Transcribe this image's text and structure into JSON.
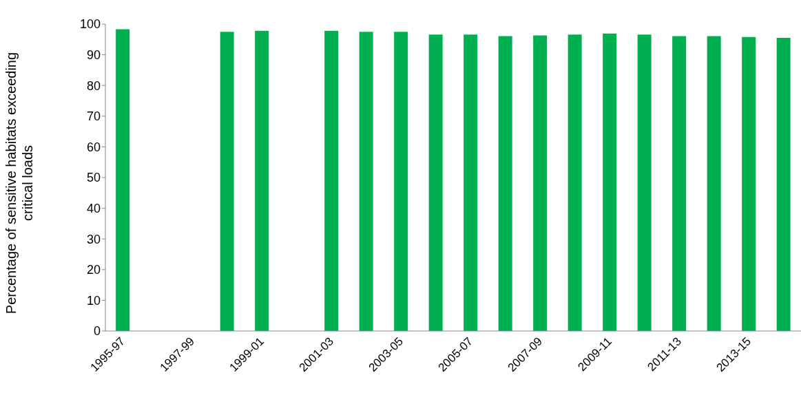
{
  "chart_data": {
    "type": "bar",
    "ylabel": "Percentage of sensitive habitats exceeding critical loads",
    "categories": [
      "1995-97",
      null,
      "1997-99",
      null,
      "1999-01",
      null,
      "2001-03",
      null,
      "2003-05",
      null,
      "2005-07",
      null,
      "2007-09",
      null,
      "2009-11",
      null,
      "2011-13",
      null,
      "2013-15",
      null
    ],
    "values": [
      98.3,
      null,
      null,
      97.5,
      97.8,
      null,
      97.8,
      97.5,
      97.5,
      96.6,
      96.6,
      96.1,
      96.3,
      96.6,
      96.9,
      96.6,
      96.1,
      96.1,
      95.8,
      95.5
    ],
    "color": "#00b050",
    "ylim": [
      0,
      100
    ],
    "yticks": [
      0,
      10,
      20,
      30,
      40,
      50,
      60,
      70,
      80,
      90,
      100
    ],
    "grid": false,
    "legend": false
  }
}
